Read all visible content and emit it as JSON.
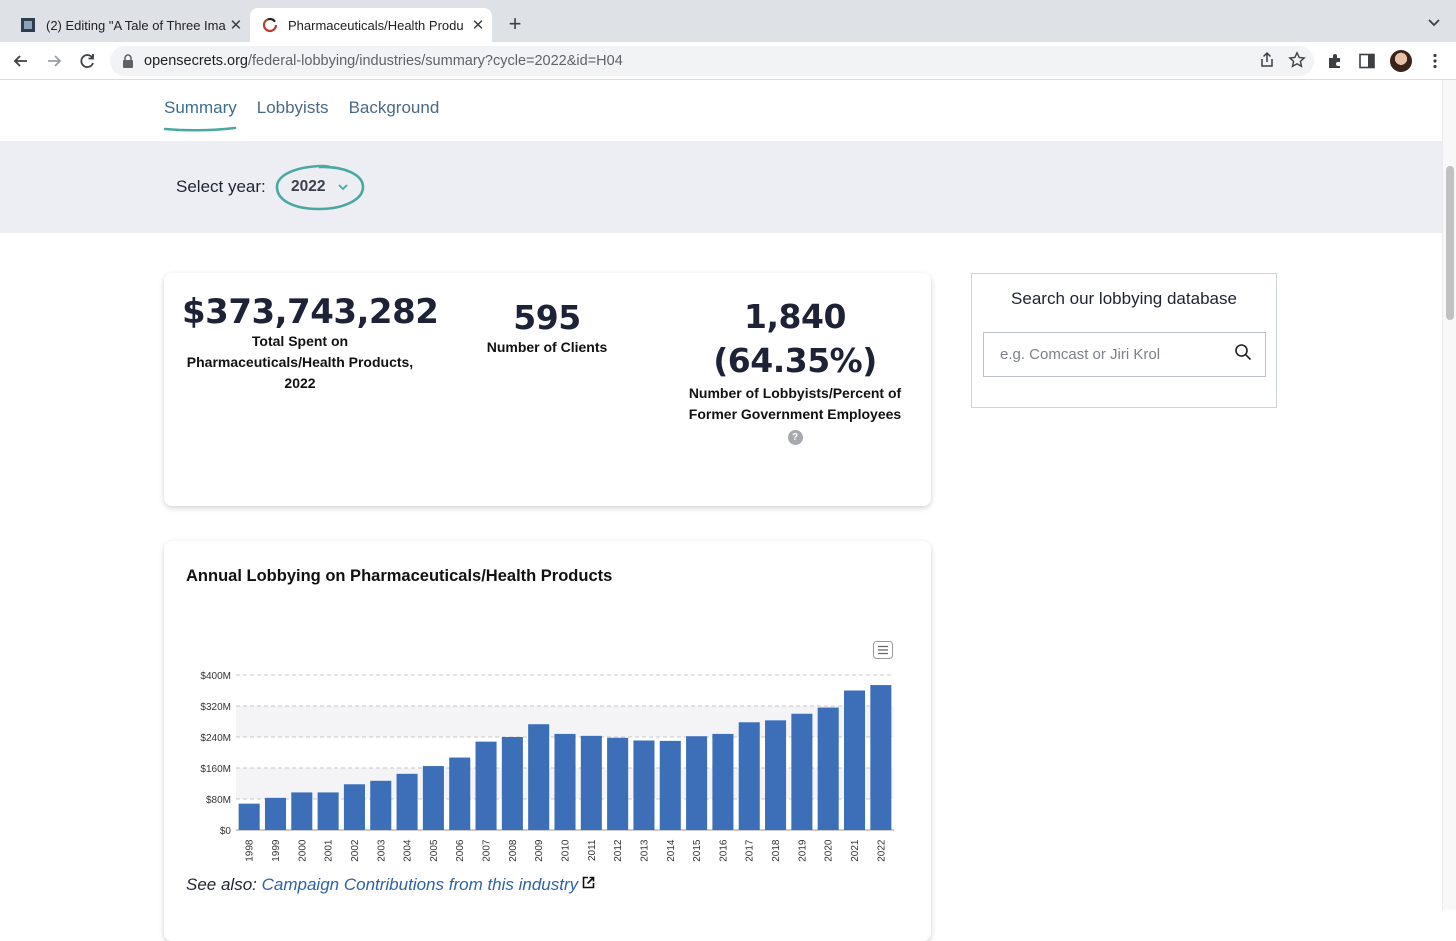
{
  "browser": {
    "tabs": [
      {
        "title": "(2) Editing \"A Tale of Three Ima",
        "active": false
      },
      {
        "title": "Pharmaceuticals/Health Produ",
        "active": true
      }
    ],
    "url_host": "opensecrets.org",
    "url_path": "/federal-lobbying/industries/summary?cycle=2022&id=H04"
  },
  "subnav": {
    "items": [
      {
        "label": "Summary",
        "active": true
      },
      {
        "label": "Lobbyists",
        "active": false
      },
      {
        "label": "Background",
        "active": false
      }
    ]
  },
  "year_select": {
    "label": "Select year:",
    "value": "2022"
  },
  "stats": {
    "total_spent": "$373,743,282",
    "total_spent_caption": "Total Spent on Pharmaceuticals/Health Products, 2022",
    "clients": "595",
    "clients_caption": "Number of Clients",
    "lobbyists": "1,840",
    "lobbyists_pct": "(64.35%)",
    "lobbyists_caption": "Number of Lobbyists/Percent of Former Government Employees",
    "help_label": "?"
  },
  "search": {
    "title": "Search our lobbying database",
    "placeholder": "e.g. Comcast or Jiri Krol"
  },
  "chart_card": {
    "see_also_prefix": "See also:",
    "see_also_link": "Campaign Contributions from this industry"
  },
  "chart_data": {
    "type": "bar",
    "title": "Annual Lobbying on Pharmaceuticals/Health Products",
    "categories": [
      "1998",
      "1999",
      "2000",
      "2001",
      "2002",
      "2003",
      "2004",
      "2005",
      "2006",
      "2007",
      "2008",
      "2009",
      "2010",
      "2011",
      "2012",
      "2013",
      "2014",
      "2015",
      "2016",
      "2017",
      "2018",
      "2019",
      "2020",
      "2021",
      "2022"
    ],
    "values": [
      68,
      83,
      97,
      97,
      118,
      127,
      145,
      165,
      187,
      228,
      240,
      273,
      248,
      243,
      238,
      231,
      230,
      242,
      248,
      278,
      283,
      300,
      316,
      360,
      374
    ],
    "units": "$M",
    "ylim": [
      0,
      400
    ],
    "yticks": [
      0,
      80,
      160,
      240,
      320,
      400
    ],
    "ytick_labels": [
      "$0",
      "$80M",
      "$160M",
      "$240M",
      "$320M",
      "$400M"
    ],
    "xlabel": "",
    "ylabel": "",
    "color": "#3d6fb8",
    "grid": true
  },
  "colors": {
    "accent": "#4aa8a0",
    "bar": "#3d6fb8",
    "link": "#2d63a6"
  }
}
